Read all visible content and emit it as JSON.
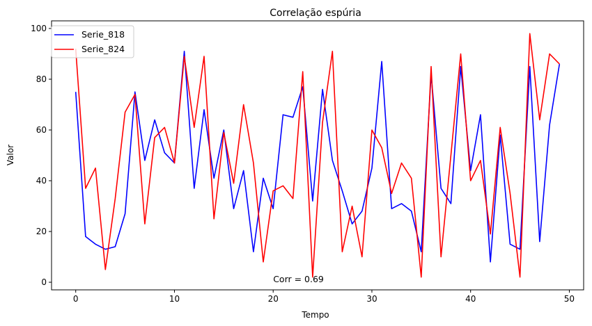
{
  "chart_data": {
    "type": "line",
    "title": "Correlação espúria",
    "xlabel": "Tempo",
    "ylabel": "Valor",
    "xlim": [
      -2.45,
      51.45
    ],
    "ylim": [
      -3.0,
      103.0
    ],
    "xticks": [
      0,
      10,
      20,
      30,
      40,
      50
    ],
    "yticks": [
      0,
      20,
      40,
      60,
      80,
      100
    ],
    "legend_position": "top-left",
    "annotation": "Corr = 0.69",
    "annotation_at": [
      20,
      0
    ],
    "x": [
      0,
      1,
      2,
      3,
      4,
      5,
      6,
      7,
      8,
      9,
      10,
      11,
      12,
      13,
      14,
      15,
      16,
      17,
      18,
      19,
      20,
      21,
      22,
      23,
      24,
      25,
      26,
      27,
      28,
      29,
      30,
      31,
      32,
      33,
      34,
      35,
      36,
      37,
      38,
      39,
      40,
      41,
      42,
      43,
      44,
      45,
      46,
      47,
      48,
      49
    ],
    "series": [
      {
        "name": "Serie_818",
        "color": "#0000ff",
        "values": [
          75,
          18,
          15,
          13,
          14,
          27,
          75,
          48,
          64,
          51,
          47,
          91,
          37,
          68,
          41,
          60,
          29,
          44,
          12,
          41,
          29,
          66,
          65,
          77,
          32,
          76,
          48,
          36,
          23,
          28,
          45,
          87,
          29,
          31,
          28,
          12,
          82,
          37,
          31,
          85,
          44,
          66,
          8,
          58,
          15,
          13,
          85,
          16,
          62,
          86
        ]
      },
      {
        "name": "Serie_824",
        "color": "#ff0000",
        "values": [
          92,
          37,
          45,
          5,
          33,
          67,
          74,
          23,
          57,
          61,
          47,
          89,
          61,
          89,
          25,
          59,
          39,
          70,
          47,
          8,
          36,
          38,
          33,
          83,
          2,
          63,
          91,
          12,
          30,
          10,
          60,
          53,
          35,
          47,
          41,
          2,
          85,
          10,
          50,
          90,
          40,
          48,
          19,
          61,
          35,
          2,
          98,
          64,
          90,
          86
        ]
      }
    ]
  }
}
